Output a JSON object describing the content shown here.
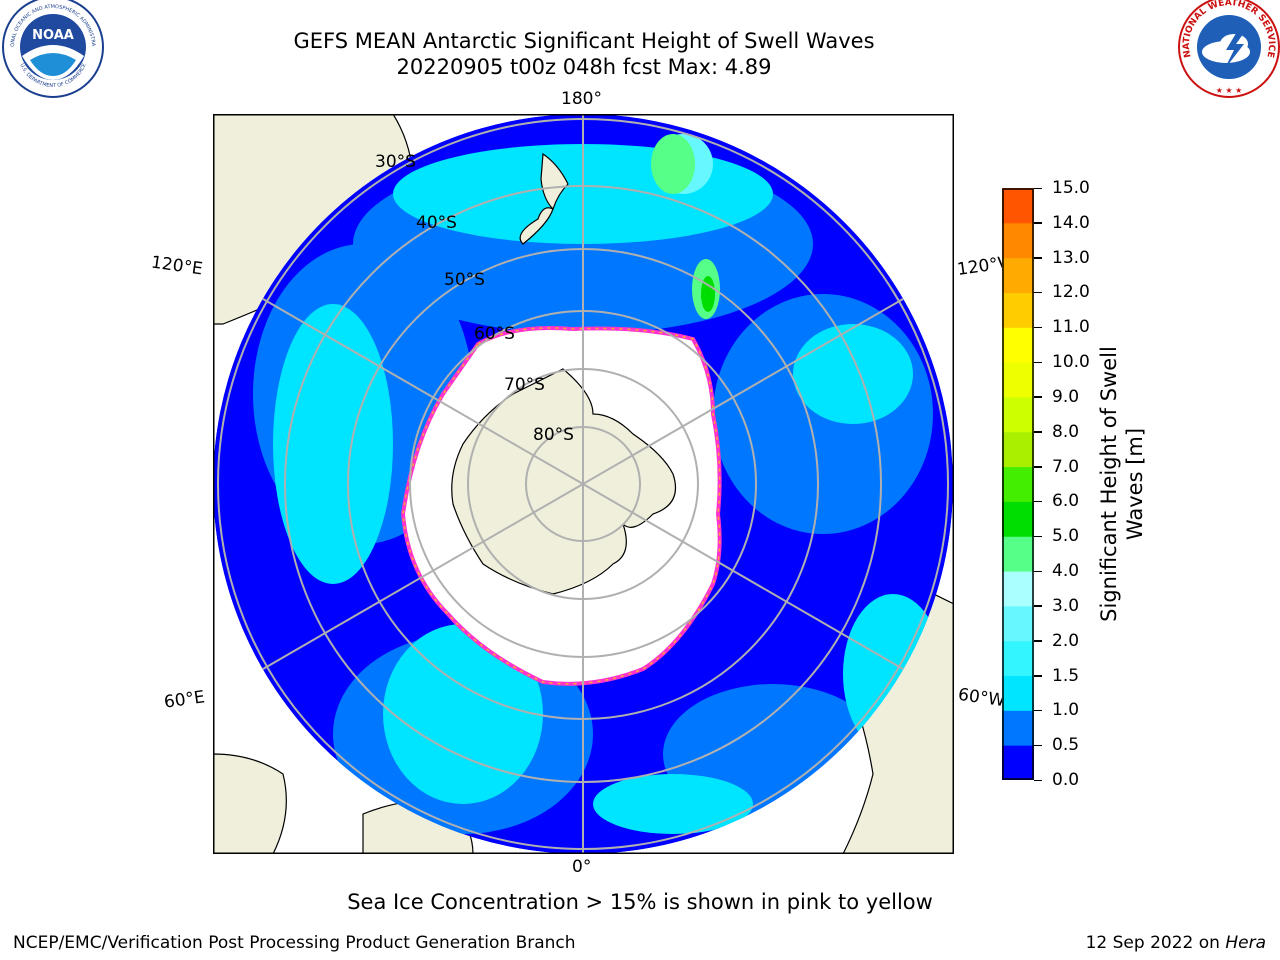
{
  "header": {
    "title_line1": "GEFS MEAN Antarctic Significant Height of Swell Waves",
    "title_line2": "20220905 t00z 048h fcst   Max: 4.89"
  },
  "logos": {
    "left": "noaa-logo",
    "left_text": "NOAA",
    "left_ring_text": "NATIONAL OCEANIC AND ATMOSPHERIC ADMINISTRATION",
    "left_ring_text2": "U.S. DEPARTMENT OF COMMERCE",
    "right": "nws-logo",
    "right_ring_text": "NATIONAL WEATHER SERVICE"
  },
  "map": {
    "projection": "south-polar-stereographic",
    "longitude_labels": [
      "180°",
      "120°E",
      "120°W",
      "60°E",
      "60°W",
      "0°"
    ],
    "latitude_labels": [
      "30°S",
      "40°S",
      "50°S",
      "60°S",
      "70°S",
      "80°S"
    ],
    "land_color": "#efefdb",
    "ice_color": "#ffffff",
    "ice_edge_colors": [
      "#ff33cc",
      "#ffaa33",
      "#ffdd33"
    ]
  },
  "colorbar": {
    "ticks": [
      "15.0",
      "14.0",
      "13.0",
      "12.0",
      "11.0",
      "10.0",
      "9.0",
      "8.0",
      "7.0",
      "6.0",
      "5.0",
      "4.0",
      "3.0",
      "2.0",
      "1.5",
      "1.0",
      "0.5",
      "0.0"
    ],
    "colors_bottom_to_top": [
      "#0000ff",
      "#0077ff",
      "#00e5ff",
      "#33f5ff",
      "#66f7ff",
      "#aaffff",
      "#55ff88",
      "#00dd00",
      "#44ee00",
      "#aaee00",
      "#ccff00",
      "#eeff00",
      "#ffff00",
      "#ffcc00",
      "#ffaa00",
      "#ff8800",
      "#ff5500",
      "#ff2200",
      "#ff0000"
    ],
    "label": "Significant Height of Swell Waves [m]"
  },
  "footer": {
    "ice_note": "Sea Ice Concentration > 15% is shown in pink to yellow",
    "credit": "NCEP/EMC/Verification Post Processing Product Generation Branch",
    "date": "12 Sep 2022 on",
    "host": "Hera"
  }
}
